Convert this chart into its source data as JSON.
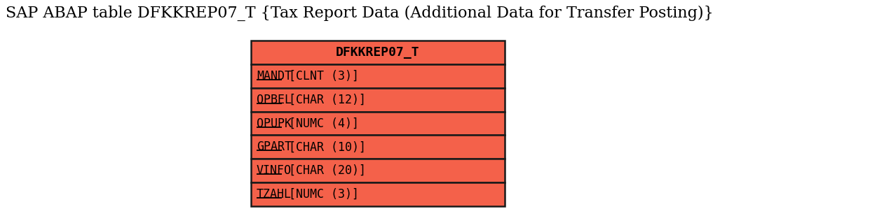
{
  "title": "SAP ABAP table DFKKREP07_T {Tax Report Data (Additional Data for Transfer Posting)}",
  "title_fontsize": 16,
  "title_color": "#000000",
  "table_name": "DFKKREP07_T",
  "fields": [
    "MANDT [CLNT (3)]",
    "OPBEL [CHAR (12)]",
    "OPUPK [NUMC (4)]",
    "GPART [CHAR (10)]",
    "VINFO [CHAR (20)]",
    "TZAHL [NUMC (3)]"
  ],
  "underline_fields": [
    "MANDT",
    "OPBEL",
    "OPUPK",
    "GPART",
    "VINFO",
    "TZAHL"
  ],
  "box_bg_color": "#F4614A",
  "box_border_color": "#1a1a1a",
  "text_color": "#000000",
  "background_color": "#ffffff",
  "field_fontsize": 12,
  "header_fontsize": 13
}
